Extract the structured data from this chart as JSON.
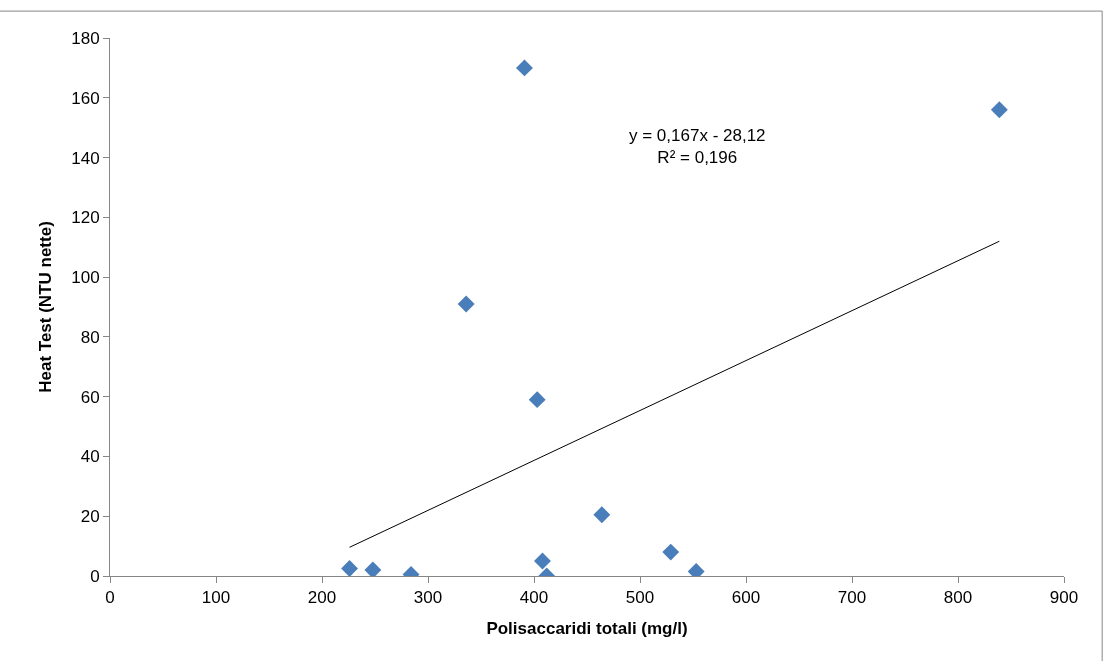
{
  "chart_data": {
    "type": "scatter",
    "xlabel": "Polisaccaridi totali (mg/l)",
    "ylabel": "Heat Test (NTU nette)",
    "xlim": [
      0,
      900
    ],
    "xticks": [
      0,
      100,
      200,
      300,
      400,
      500,
      600,
      700,
      800,
      900
    ],
    "ylim": [
      0,
      180
    ],
    "yticks": [
      0,
      20,
      40,
      60,
      80,
      100,
      120,
      140,
      160,
      180
    ],
    "marker": "diamond",
    "series": [
      {
        "color": "#4a7ebb",
        "x": [
          226,
          248,
          284,
          336,
          391,
          403,
          408,
          412,
          464,
          529,
          553,
          839
        ],
        "values": [
          2.5,
          2,
          0.5,
          91,
          170,
          59,
          5,
          0,
          20.5,
          8,
          1.5,
          156
        ]
      },
      {
        "type": "line",
        "color": "#000000",
        "x": [
          226,
          839
        ],
        "values": [
          9.6,
          112
        ],
        "marker": "none",
        "line_style": "solid"
      }
    ],
    "annotations": [
      "y = 0,167x - 28,12\nR² = 0,196"
    ]
  }
}
